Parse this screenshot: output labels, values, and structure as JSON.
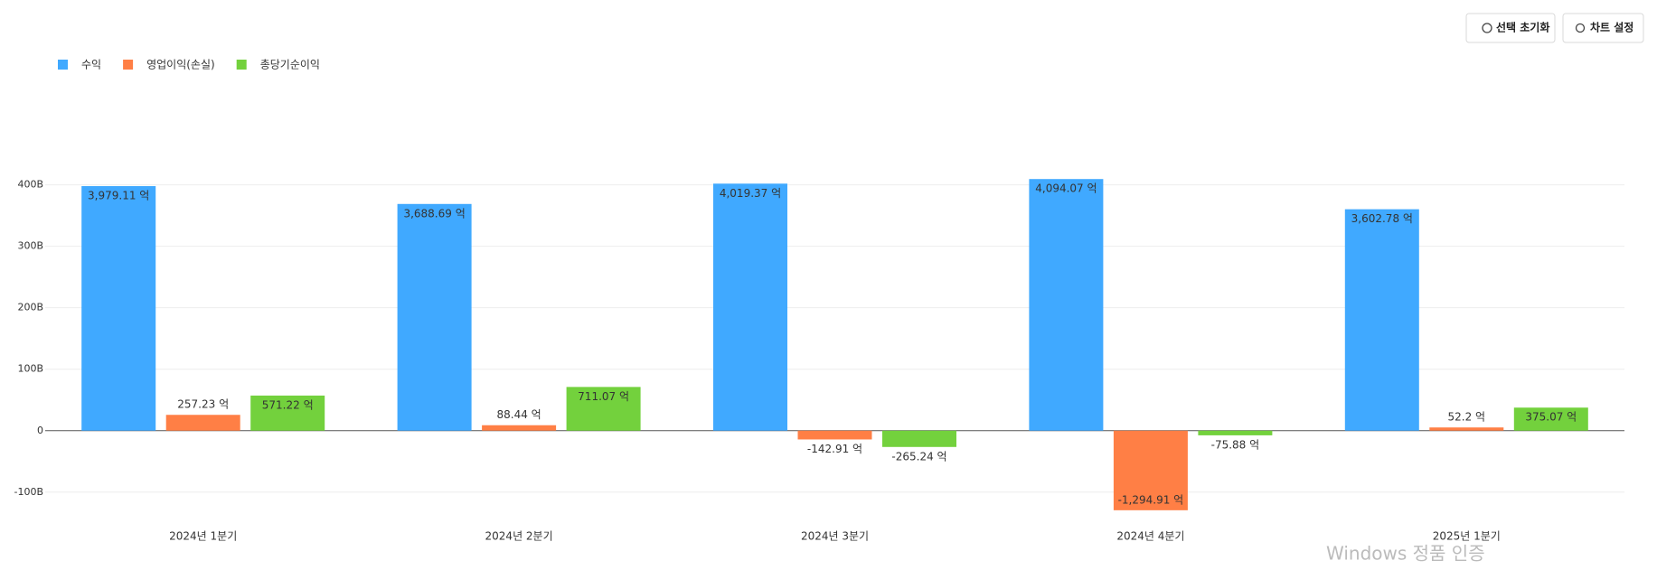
{
  "toolbar": {
    "reset_button": "선택 초기화",
    "settings_button": "차트 설정"
  },
  "watermark": "Windows 정품 인증",
  "chart_data": {
    "type": "bar",
    "categories": [
      "2024년 1분기",
      "2024년 2분기",
      "2024년 3분기",
      "2024년 4분기",
      "2025년 1분기"
    ],
    "series": [
      {
        "name": "수익",
        "color": "#40a9ff",
        "values": [
          397.911,
          368.869,
          401.937,
          409.407,
          360.278
        ],
        "value_labels": [
          "3,979.11 억",
          "3,688.69 억",
          "4,019.37 억",
          "4,094.07 억",
          "3,602.78 억"
        ]
      },
      {
        "name": "영업이익(손실)",
        "color": "#ff7f45",
        "values": [
          25.723,
          8.844,
          -14.291,
          -129.491,
          5.22
        ],
        "value_labels": [
          "257.23 억",
          "88.44 억",
          "-142.91 억",
          "-1,294.91 억",
          "52.2 억"
        ]
      },
      {
        "name": "총당기순이익",
        "color": "#73d13d",
        "values": [
          57.122,
          71.107,
          -26.524,
          -7.588,
          37.507
        ],
        "value_labels": [
          "571.22 억",
          "711.07 억",
          "-265.24 억",
          "-75.88 억",
          "375.07 억"
        ]
      }
    ],
    "ylim": [
      -140,
      420
    ],
    "yticks": [
      {
        "value": -100,
        "label": "-100B"
      },
      0,
      {
        "value": 100,
        "label": "100B"
      },
      {
        "value": 200,
        "label": "200B"
      },
      {
        "value": 300,
        "label": "300B"
      },
      {
        "value": 400,
        "label": "400B"
      }
    ],
    "grid": true,
    "legend": "top-left"
  }
}
